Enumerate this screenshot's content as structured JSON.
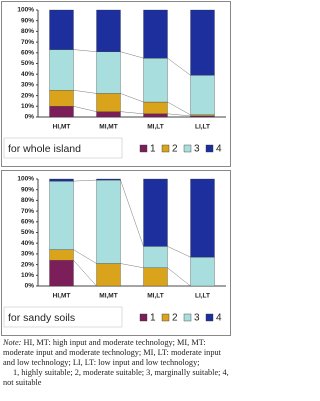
{
  "chart_data": [
    {
      "type": "stacked_bar",
      "title": "for whole island",
      "categories": [
        "HI,MT",
        "MI,MT",
        "MI,LT",
        "LI,LT"
      ],
      "series": [
        {
          "name": "1",
          "color": "#7b1e5a",
          "values": [
            10,
            5,
            3,
            1
          ]
        },
        {
          "name": "2",
          "color": "#d9a31c",
          "values": [
            15,
            17,
            11,
            1
          ]
        },
        {
          "name": "3",
          "color": "#a9dede",
          "values": [
            38,
            39,
            41,
            37
          ]
        },
        {
          "name": "4",
          "color": "#1c2f9c",
          "values": [
            37,
            39,
            45,
            61
          ]
        }
      ],
      "ylim": [
        0,
        100
      ],
      "yticks": [
        {
          "value": 0,
          "label": "0%"
        },
        {
          "value": 10,
          "label": "10%"
        },
        {
          "value": 20,
          "label": "20%"
        },
        {
          "value": 30,
          "label": "30%"
        },
        {
          "value": 40,
          "label": "40%"
        },
        {
          "value": 50,
          "label": "50%"
        },
        {
          "value": 60,
          "label": "60%"
        },
        {
          "value": 70,
          "label": "70%"
        },
        {
          "value": 80,
          "label": "80%"
        },
        {
          "value": 90,
          "label": "90%"
        },
        {
          "value": 100,
          "label": "100%"
        }
      ],
      "grid": false
    },
    {
      "type": "stacked_bar",
      "title": "for sandy soils",
      "categories": [
        "HI,MT",
        "MI,MT",
        "MI,LT",
        "LI,LT"
      ],
      "series": [
        {
          "name": "1",
          "color": "#7b1e5a",
          "values": [
            24,
            0,
            0,
            0
          ]
        },
        {
          "name": "2",
          "color": "#d9a31c",
          "values": [
            10,
            21,
            17,
            0
          ]
        },
        {
          "name": "3",
          "color": "#a9dede",
          "values": [
            64,
            78,
            20,
            27
          ]
        },
        {
          "name": "4",
          "color": "#1c2f9c",
          "values": [
            2,
            1,
            63,
            73
          ]
        }
      ],
      "ylim": [
        0,
        100
      ],
      "yticks": [
        {
          "value": 0,
          "label": "0%"
        },
        {
          "value": 10,
          "label": "10%"
        },
        {
          "value": 20,
          "label": "20%"
        },
        {
          "value": 30,
          "label": "30%"
        },
        {
          "value": 40,
          "label": "40%"
        },
        {
          "value": 50,
          "label": "50%"
        },
        {
          "value": 60,
          "label": "60%"
        },
        {
          "value": 70,
          "label": "70%"
        },
        {
          "value": 80,
          "label": "80%"
        },
        {
          "value": 90,
          "label": "90%"
        },
        {
          "value": 100,
          "label": "100%"
        }
      ],
      "grid": false
    }
  ],
  "note": {
    "label": "Note:",
    "text": "HI, MT: high input and moderate technology; MI, MT: moderate input and moderate technology; MI, LT: moderate input and low technology; LI, LT: low input and low technology;",
    "legend_text": "1, highly suitable; 2, moderate suitable; 3, marginally suitable; 4, not suitable"
  }
}
